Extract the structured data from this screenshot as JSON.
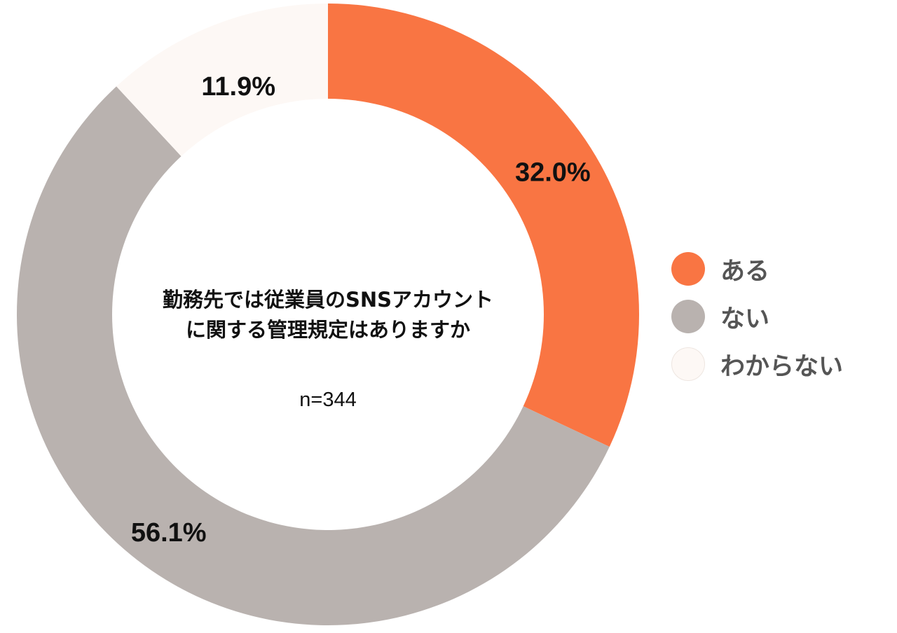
{
  "chart_data": {
    "type": "pie",
    "title_lines": [
      "勤務先では従業員のSNSアカウント",
      "に関する管理規定はありますか"
    ],
    "sample_note": "n=344",
    "categories": [
      "ある",
      "ない",
      "わからない"
    ],
    "values": [
      32.0,
      56.1,
      11.9
    ],
    "value_labels": [
      "32.0%",
      "56.1%",
      "11.9%"
    ],
    "colors": [
      "#F97543",
      "#B9B2AF",
      "#FDF8F5"
    ],
    "legend_position": "right",
    "donut": true
  }
}
